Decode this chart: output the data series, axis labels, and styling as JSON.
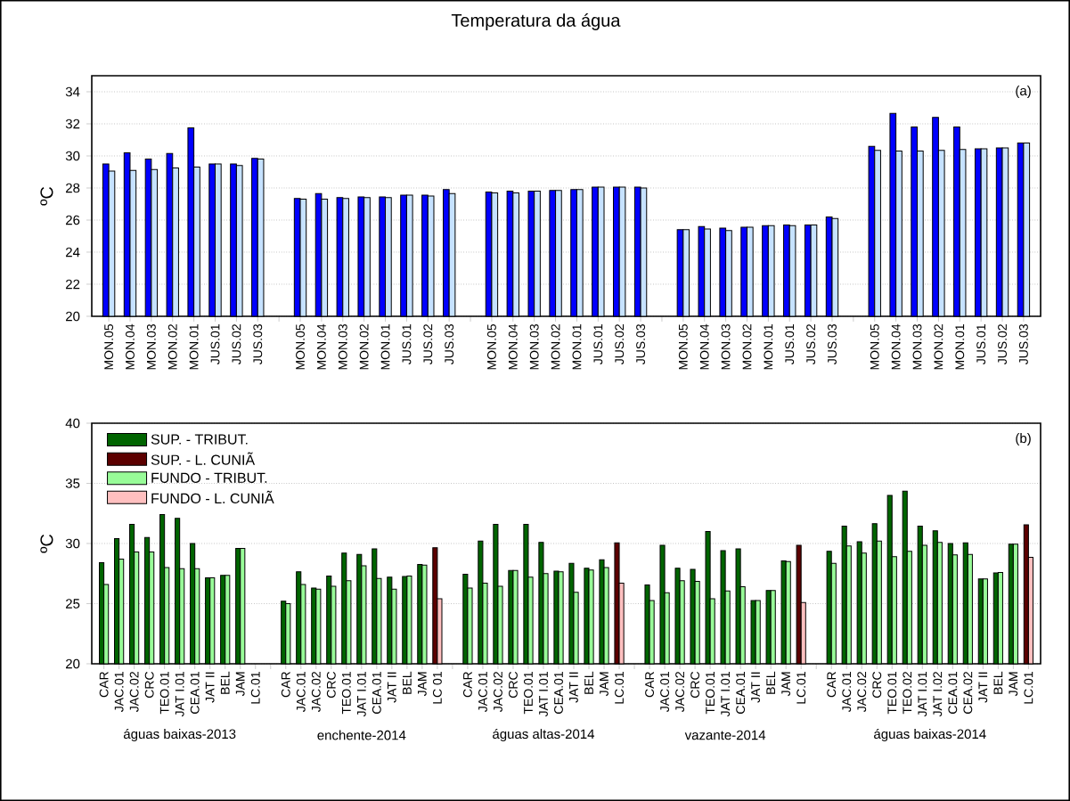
{
  "chart_data": [
    {
      "type": "bar",
      "title": "Temperatura da água",
      "ylabel": "ºC",
      "categories": [
        "MON.05",
        "MON.04",
        "MON.03",
        "MON.02",
        "MON.01",
        "JUS.01",
        "JUS.02",
        "JUS.03",
        null,
        "MON.05",
        "MON.04",
        "MON.03",
        "MON.02",
        "MON.01",
        "JUS.01",
        "JUS.02",
        "JUS.03",
        null,
        "MON.05",
        "MON.04",
        "MON.03",
        "MON.02",
        "MON.01",
        "JUS.01",
        "JUS.02",
        "JUS.03",
        null,
        "MON.05",
        "MON.04",
        "MON.03",
        "MON.02",
        "MON.01",
        "JUS.01",
        "JUS.02",
        "JUS.03",
        null,
        "MON.05",
        "MON.04",
        "MON.03",
        "MON.02",
        "MON.01",
        "JUS.01",
        "JUS.02",
        "JUS.03"
      ],
      "series": [
        {
          "color": "#0000ff",
          "values": [
            29.5,
            30.2,
            29.8,
            30.15,
            31.75,
            29.5,
            29.5,
            29.85,
            null,
            27.35,
            27.65,
            27.4,
            27.45,
            27.45,
            27.55,
            27.55,
            27.9,
            null,
            27.75,
            27.8,
            27.8,
            27.85,
            27.9,
            28.05,
            28.05,
            28.05,
            null,
            25.4,
            25.6,
            25.5,
            25.55,
            25.65,
            25.7,
            25.7,
            26.2,
            null,
            30.6,
            32.65,
            31.8,
            32.4,
            31.8,
            30.45,
            30.5,
            30.8
          ]
        },
        {
          "color": "#c6e2ff",
          "values": [
            29.05,
            29.1,
            29.15,
            29.25,
            29.3,
            29.5,
            29.4,
            29.8,
            null,
            27.3,
            27.3,
            27.35,
            27.4,
            27.4,
            27.55,
            27.5,
            27.65,
            null,
            27.7,
            27.7,
            27.8,
            27.85,
            27.9,
            28.05,
            28.05,
            28.0,
            null,
            25.4,
            25.45,
            25.35,
            25.55,
            25.65,
            25.65,
            25.7,
            26.1,
            null,
            30.35,
            30.3,
            30.3,
            30.35,
            30.4,
            30.45,
            30.5,
            30.8
          ]
        }
      ],
      "ylim": [
        20,
        35
      ],
      "yticks": [
        20,
        22,
        24,
        26,
        28,
        30,
        32,
        34
      ],
      "grid": "y",
      "annotations": [
        "(a)"
      ]
    },
    {
      "type": "bar",
      "ylabel": "ºC",
      "categories": [
        "CAR",
        "JAC.01",
        "JAC.02",
        "CRC",
        "TEO.01",
        "JAT I.01",
        "CEA.01",
        "JAT II",
        "BEL",
        "JAM",
        "LC.01",
        null,
        "CAR",
        "JAC.01",
        "JAC.02",
        "CRC",
        "TEO.01",
        "JAT I.01",
        "CEA.01",
        "JAT II",
        "BEL",
        "JAM",
        "LC 01",
        null,
        "CAR",
        "JAC.01",
        "JAC.02",
        "CRC",
        "TEO.01",
        "JAT I.01",
        "CEA.01",
        "JAT II",
        "BEL",
        "JAM",
        "LC.01",
        null,
        "CAR",
        "JAC.01",
        "JAC.02",
        "CRC",
        "TEO.01",
        "JAT I.01",
        "CEA.01",
        "JAT II",
        "BEL",
        "JAM",
        "LC.01",
        null,
        "CAR",
        "JAC.01",
        "JAC.02",
        "CRC",
        "TEO.01",
        "TEO.02",
        "JAT I.01",
        "JAT I.02",
        "CEA.01",
        "CEA.02",
        "JAT II",
        "BEL",
        "JAM",
        "LC.01"
      ],
      "series": [
        {
          "name": "SUP. - TRIBUT.",
          "color": "#006400",
          "values": [
            28.4,
            30.4,
            31.6,
            30.5,
            32.4,
            32.1,
            30.0,
            27.15,
            27.35,
            29.6,
            null,
            null,
            25.2,
            27.65,
            26.3,
            27.3,
            29.2,
            29.1,
            29.55,
            27.2,
            27.25,
            28.25,
            null,
            null,
            27.45,
            30.2,
            31.6,
            27.75,
            31.6,
            30.1,
            27.7,
            28.35,
            27.95,
            28.65,
            null,
            null,
            26.55,
            29.85,
            27.95,
            27.85,
            31.0,
            29.4,
            29.55,
            25.25,
            26.1,
            28.55,
            null,
            null,
            29.35,
            31.45,
            30.15,
            31.65,
            34.0,
            34.35,
            31.45,
            31.05,
            30.0,
            30.05,
            27.05,
            27.55,
            29.95,
            null
          ]
        },
        {
          "name": "SUP. - L. CUNIÃ",
          "color": "#5c0000",
          "values": [
            null,
            null,
            null,
            null,
            null,
            null,
            null,
            null,
            null,
            null,
            null,
            null,
            null,
            null,
            null,
            null,
            null,
            null,
            null,
            null,
            null,
            null,
            29.65,
            null,
            null,
            null,
            null,
            null,
            null,
            null,
            null,
            null,
            null,
            null,
            30.05,
            null,
            null,
            null,
            null,
            null,
            null,
            null,
            null,
            null,
            null,
            null,
            29.85,
            null,
            null,
            null,
            null,
            null,
            null,
            null,
            null,
            null,
            null,
            null,
            null,
            null,
            null,
            31.55
          ]
        },
        {
          "name": "FUNDO - TRIBUT.",
          "color": "#98fb98",
          "values": [
            26.6,
            28.7,
            29.3,
            29.3,
            28.0,
            27.9,
            27.9,
            27.15,
            27.35,
            29.6,
            null,
            null,
            25.0,
            26.6,
            26.2,
            26.45,
            26.9,
            28.15,
            27.1,
            26.2,
            27.3,
            28.2,
            null,
            null,
            26.3,
            26.7,
            26.45,
            27.75,
            27.2,
            27.5,
            27.65,
            25.95,
            27.8,
            28.0,
            null,
            null,
            25.25,
            25.9,
            26.9,
            26.85,
            25.4,
            26.05,
            26.4,
            25.25,
            26.1,
            28.5,
            null,
            null,
            28.35,
            29.8,
            29.2,
            30.2,
            28.9,
            29.35,
            29.85,
            30.1,
            29.05,
            29.1,
            27.05,
            27.6,
            29.95,
            null
          ]
        },
        {
          "name": "FUNDO - L. CUNIÃ",
          "color": "#ffc0c0",
          "values": [
            null,
            null,
            null,
            null,
            null,
            null,
            null,
            null,
            null,
            null,
            null,
            null,
            null,
            null,
            null,
            null,
            null,
            null,
            null,
            null,
            null,
            null,
            25.4,
            null,
            null,
            null,
            null,
            null,
            null,
            null,
            null,
            null,
            null,
            null,
            26.7,
            null,
            null,
            null,
            null,
            null,
            null,
            null,
            null,
            null,
            null,
            null,
            25.1,
            null,
            null,
            null,
            null,
            null,
            null,
            null,
            null,
            null,
            null,
            null,
            null,
            null,
            null,
            28.85
          ]
        }
      ],
      "ylim": [
        20,
        40
      ],
      "yticks": [
        20,
        25,
        30,
        35,
        40
      ],
      "grid": "y",
      "legend": "top left",
      "annotations": [
        "(b)",
        "águas baixas-2013",
        "enchente-2014",
        "águas altas-2014",
        "vazante-2014",
        "águas baixas-2014"
      ]
    }
  ]
}
